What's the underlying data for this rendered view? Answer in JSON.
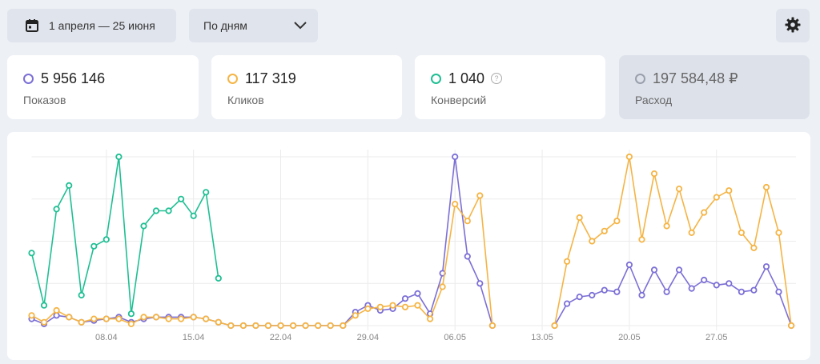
{
  "toolbar": {
    "date_range": "1 апреля — 25 июня",
    "grouping": "По дням",
    "calendar_icon": "calendar-icon",
    "chevron_icon": "chevron-down-icon",
    "settings_icon": "gear-icon"
  },
  "metrics": [
    {
      "value": "5 956 146",
      "label": "Показов",
      "color": "#7b6fd6",
      "active": true
    },
    {
      "value": "117 319",
      "label": "Кликов",
      "color": "#f5b444",
      "active": true
    },
    {
      "value": "1 040",
      "label": "Конверсий",
      "color": "#1fbf93",
      "active": true,
      "help_icon": "question-icon"
    },
    {
      "value": "197 584,48 ₽",
      "label": "Расход",
      "color": "#9aa0ab",
      "active": false
    }
  ],
  "chart_data": {
    "type": "line",
    "x_tick_labels": [
      "08.04",
      "15.04",
      "22.04",
      "29.04",
      "06.05",
      "13.05",
      "20.05",
      "27.05"
    ],
    "x_tick_indices": [
      6,
      13,
      20,
      27,
      34,
      41,
      48,
      55
    ],
    "y_max": 100,
    "y_gridlines": 4,
    "series": [
      {
        "key": "conversions",
        "color": "#1fbf93",
        "values": [
          43,
          12,
          69,
          83,
          18,
          47,
          51,
          100,
          7,
          59,
          68,
          68,
          75,
          65,
          79,
          28
        ]
      },
      {
        "key": "impressions",
        "color": "#7b6fd6",
        "values": [
          4,
          1,
          6,
          5,
          2,
          3,
          4,
          5,
          2,
          4,
          5,
          5,
          5,
          5,
          4,
          2,
          0,
          0,
          0,
          0,
          0,
          0,
          0,
          0,
          0,
          0,
          8,
          12,
          9,
          10,
          16,
          19,
          7,
          31,
          100,
          41,
          25,
          0,
          null,
          null,
          null,
          null,
          0,
          13,
          17,
          18,
          21,
          20,
          36,
          18,
          33,
          20,
          33,
          22,
          27,
          24,
          25,
          20,
          21,
          35,
          20,
          0
        ]
      },
      {
        "key": "clicks",
        "color": "#f5b444",
        "values": [
          6,
          2,
          9,
          5,
          2,
          4,
          4,
          4,
          1,
          5,
          5,
          4,
          4,
          5,
          4,
          2,
          0,
          0,
          0,
          0,
          0,
          0,
          0,
          0,
          0,
          0,
          6,
          10,
          11,
          12,
          11,
          12,
          4,
          23,
          72,
          62,
          77,
          0,
          null,
          null,
          null,
          null,
          0,
          38,
          64,
          50,
          56,
          62,
          100,
          51,
          90,
          59,
          81,
          55,
          67,
          76,
          80,
          55,
          46,
          82,
          55,
          0
        ]
      }
    ]
  }
}
